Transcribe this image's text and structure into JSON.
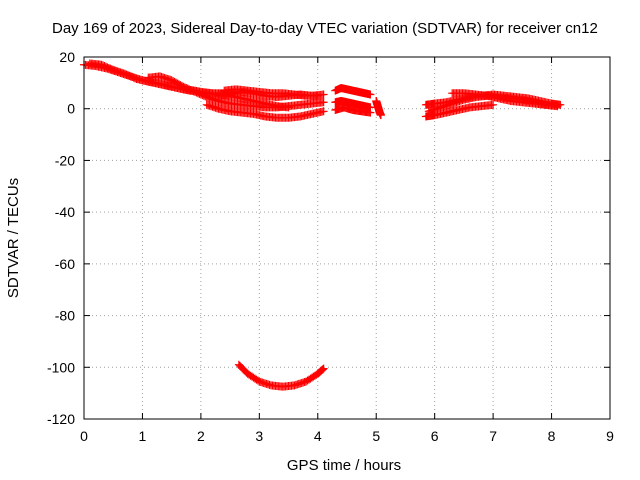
{
  "chart_data": {
    "type": "scatter",
    "title": "Day 169 of 2023, Sidereal Day-to-day VTEC variation (SDTVAR) for receiver cn12",
    "xlabel": "GPS time / hours",
    "ylabel": "SDTVAR / TECUs",
    "xlim": [
      0,
      9
    ],
    "ylim": [
      -120,
      20
    ],
    "xticks": [
      "0",
      "1",
      "2",
      "3",
      "4",
      "5",
      "6",
      "7",
      "8",
      "9"
    ],
    "yticks": [
      "20",
      "0",
      "-20",
      "-40",
      "-60",
      "-80",
      "-100",
      "-120"
    ],
    "grid": true,
    "marker": "plus",
    "color": "#ff0000",
    "series": [
      {
        "points": [
          [
            0.0,
            17.0
          ],
          [
            0.2,
            16.5
          ],
          [
            0.4,
            15.5
          ],
          [
            0.6,
            14.0
          ],
          [
            0.8,
            12.5
          ],
          [
            1.0,
            11.0
          ],
          [
            1.2,
            10.0
          ],
          [
            1.4,
            9.0
          ],
          [
            1.6,
            8.0
          ],
          [
            1.8,
            7.0
          ],
          [
            2.0,
            6.5
          ],
          [
            2.2,
            6.0
          ],
          [
            2.4,
            6.0
          ],
          [
            2.6,
            6.5
          ]
        ]
      },
      {
        "points": [
          [
            0.1,
            17.5
          ],
          [
            0.3,
            17.0
          ],
          [
            0.5,
            15.0
          ],
          [
            0.7,
            13.5
          ],
          [
            0.9,
            11.5
          ],
          [
            1.1,
            10.5
          ],
          [
            1.3,
            9.5
          ],
          [
            1.5,
            8.5
          ],
          [
            1.7,
            7.5
          ],
          [
            1.9,
            7.0
          ],
          [
            2.1,
            6.0
          ],
          [
            2.3,
            5.5
          ],
          [
            2.5,
            5.0
          ],
          [
            2.7,
            4.0
          ],
          [
            2.9,
            3.0
          ],
          [
            3.1,
            2.0
          ],
          [
            3.3,
            1.0
          ],
          [
            3.5,
            0.5
          ]
        ]
      },
      {
        "points": [
          [
            1.1,
            12.0
          ],
          [
            1.3,
            12.5
          ],
          [
            1.5,
            11.0
          ],
          [
            1.7,
            8.5
          ],
          [
            1.9,
            6.5
          ],
          [
            2.1,
            4.5
          ],
          [
            2.3,
            3.0
          ],
          [
            2.5,
            2.0
          ],
          [
            2.7,
            1.5
          ],
          [
            2.9,
            1.0
          ],
          [
            3.1,
            0.5
          ],
          [
            3.3,
            0.5
          ],
          [
            3.5,
            1.0
          ],
          [
            3.7,
            1.5
          ],
          [
            3.9,
            2.0
          ],
          [
            4.1,
            2.5
          ]
        ]
      },
      {
        "points": [
          [
            2.1,
            1.5
          ],
          [
            2.3,
            0.0
          ],
          [
            2.5,
            -1.0
          ],
          [
            2.7,
            -1.5
          ],
          [
            2.9,
            -2.0
          ],
          [
            3.1,
            -3.0
          ],
          [
            3.3,
            -3.5
          ],
          [
            3.5,
            -3.5
          ],
          [
            3.7,
            -3.0
          ],
          [
            3.9,
            -2.0
          ],
          [
            4.1,
            -1.0
          ]
        ]
      },
      {
        "points": [
          [
            2.3,
            5.0
          ],
          [
            2.5,
            5.5
          ],
          [
            2.7,
            6.5
          ],
          [
            2.9,
            6.0
          ],
          [
            3.1,
            5.0
          ],
          [
            3.3,
            4.5
          ],
          [
            3.5,
            5.0
          ],
          [
            3.7,
            5.5
          ],
          [
            3.9,
            5.0
          ],
          [
            4.1,
            5.5
          ]
        ]
      },
      {
        "points": [
          [
            2.4,
            7.0
          ],
          [
            2.6,
            7.5
          ],
          [
            2.8,
            7.0
          ],
          [
            3.0,
            6.5
          ],
          [
            3.2,
            6.0
          ],
          [
            3.4,
            6.0
          ],
          [
            3.6,
            5.5
          ],
          [
            3.8,
            5.0
          ],
          [
            4.0,
            5.0
          ]
        ]
      },
      {
        "points": [
          [
            4.3,
            7.0
          ],
          [
            4.4,
            8.0
          ],
          [
            4.5,
            7.5
          ],
          [
            4.6,
            7.0
          ],
          [
            4.7,
            6.5
          ],
          [
            4.8,
            6.0
          ],
          [
            4.9,
            5.5
          ]
        ]
      },
      {
        "points": [
          [
            4.3,
            2.5
          ],
          [
            4.4,
            3.0
          ],
          [
            4.5,
            2.5
          ],
          [
            4.6,
            2.0
          ],
          [
            4.7,
            1.5
          ],
          [
            4.8,
            1.0
          ],
          [
            4.9,
            0.5
          ]
        ]
      },
      {
        "points": [
          [
            4.3,
            -0.5
          ],
          [
            4.45,
            0.5
          ],
          [
            4.6,
            -0.5
          ],
          [
            4.75,
            -1.0
          ],
          [
            4.9,
            -1.5
          ]
        ]
      },
      {
        "points": [
          [
            5.0,
            3.0
          ],
          [
            5.02,
            1.5
          ],
          [
            5.04,
            0.0
          ],
          [
            5.06,
            -1.5
          ],
          [
            5.08,
            -2.5
          ]
        ]
      },
      {
        "points": [
          [
            5.85,
            1.5
          ],
          [
            6.0,
            2.0
          ],
          [
            6.2,
            2.5
          ],
          [
            6.4,
            3.5
          ],
          [
            6.6,
            4.5
          ],
          [
            6.8,
            5.0
          ],
          [
            7.0,
            5.5
          ],
          [
            7.2,
            5.0
          ],
          [
            7.4,
            4.5
          ],
          [
            7.6,
            4.0
          ],
          [
            7.8,
            3.0
          ],
          [
            8.0,
            2.0
          ],
          [
            8.15,
            1.5
          ]
        ]
      },
      {
        "points": [
          [
            5.85,
            -3.0
          ],
          [
            6.0,
            -2.5
          ],
          [
            6.2,
            -1.5
          ],
          [
            6.4,
            -0.5
          ],
          [
            6.6,
            0.5
          ],
          [
            6.8,
            1.0
          ],
          [
            7.0,
            1.5
          ]
        ]
      },
      {
        "points": [
          [
            5.9,
            -1.0
          ],
          [
            6.1,
            0.5
          ],
          [
            6.3,
            2.0
          ],
          [
            6.5,
            3.5
          ],
          [
            6.7,
            4.5
          ],
          [
            6.9,
            5.0
          ],
          [
            7.1,
            4.5
          ],
          [
            7.3,
            4.0
          ],
          [
            7.5,
            3.5
          ],
          [
            7.7,
            2.5
          ],
          [
            7.9,
            1.5
          ],
          [
            8.1,
            1.0
          ]
        ]
      },
      {
        "points": [
          [
            6.3,
            6.0
          ],
          [
            6.5,
            6.0
          ],
          [
            6.7,
            5.5
          ],
          [
            6.9,
            5.0
          ],
          [
            7.1,
            4.0
          ],
          [
            7.3,
            3.0
          ],
          [
            7.5,
            2.5
          ],
          [
            7.7,
            2.0
          ],
          [
            7.9,
            1.5
          ],
          [
            8.1,
            1.0
          ]
        ]
      },
      {
        "points": [
          [
            2.65,
            -99.0
          ],
          [
            2.8,
            -102.5
          ],
          [
            3.0,
            -105.5
          ],
          [
            3.2,
            -107.0
          ],
          [
            3.4,
            -107.5
          ],
          [
            3.6,
            -107.0
          ],
          [
            3.8,
            -105.5
          ],
          [
            4.0,
            -102.5
          ],
          [
            4.1,
            -100.5
          ]
        ]
      }
    ]
  }
}
